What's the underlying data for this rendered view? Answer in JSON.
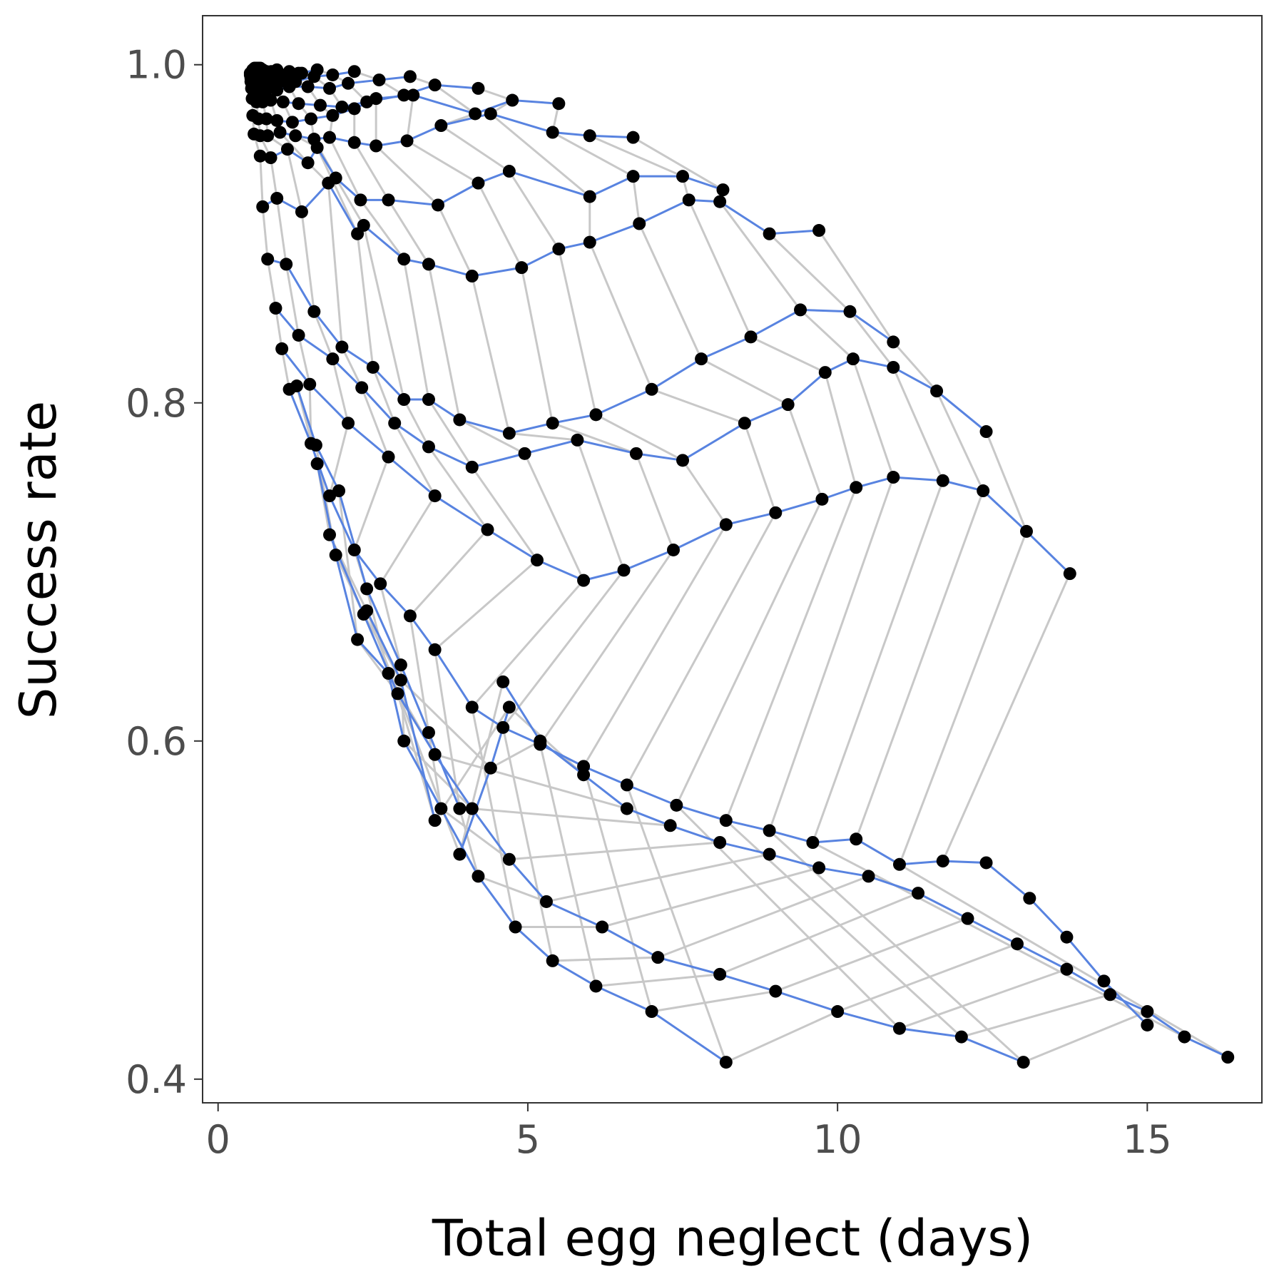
{
  "chart_data": {
    "type": "line",
    "title": "",
    "xlabel": "Total egg neglect (days)",
    "ylabel": "Success rate",
    "xlim": [
      -0.25,
      16.85
    ],
    "ylim": [
      0.386,
      1.029
    ],
    "x_ticks": [
      0,
      5,
      10,
      15
    ],
    "x_tick_labels": [
      "0",
      "5",
      "10",
      "15"
    ],
    "y_ticks": [
      0.4,
      0.6,
      0.8,
      1.0
    ],
    "y_tick_labels": [
      "0.4",
      "0.6",
      "0.8",
      "1.0"
    ],
    "grid": false,
    "legend": "none",
    "colors": {
      "series_line": "#5883e0",
      "connector_line": "#c8c8c8",
      "point": "#000000",
      "frame": "#333333",
      "tick_label": "#4d4d4d"
    },
    "series": [
      {
        "points": [
          [
            0.52,
            0.995
          ],
          [
            0.56,
            0.997
          ],
          [
            0.59,
            0.998
          ],
          [
            0.62,
            0.998
          ],
          [
            0.65,
            0.998
          ],
          [
            0.68,
            0.998
          ],
          [
            0.72,
            0.997
          ]
        ]
      },
      {
        "points": [
          [
            0.52,
            0.994
          ],
          [
            0.56,
            0.996
          ],
          [
            0.6,
            0.997
          ],
          [
            0.64,
            0.996
          ],
          [
            0.7,
            0.996
          ],
          [
            0.78,
            0.996
          ],
          [
            0.86,
            0.996
          ],
          [
            0.95,
            0.997
          ]
        ]
      },
      {
        "points": [
          [
            0.53,
            0.993
          ],
          [
            0.57,
            0.994
          ],
          [
            0.61,
            0.994
          ],
          [
            0.66,
            0.994
          ],
          [
            0.74,
            0.994
          ],
          [
            0.84,
            0.995
          ],
          [
            0.96,
            0.996
          ],
          [
            1.15,
            0.996
          ],
          [
            1.3,
            0.995
          ]
        ]
      },
      {
        "points": [
          [
            0.53,
            0.992
          ],
          [
            0.57,
            0.993
          ],
          [
            0.62,
            0.992
          ],
          [
            0.68,
            0.992
          ],
          [
            0.78,
            0.992
          ],
          [
            0.92,
            0.993
          ],
          [
            1.1,
            0.993
          ],
          [
            1.35,
            0.995
          ],
          [
            1.6,
            0.997
          ]
        ]
      },
      {
        "points": [
          [
            0.53,
            0.99
          ],
          [
            0.58,
            0.99
          ],
          [
            0.64,
            0.99
          ],
          [
            0.72,
            0.99
          ],
          [
            0.84,
            0.99
          ],
          [
            1.0,
            0.99
          ],
          [
            1.25,
            0.99
          ],
          [
            1.55,
            0.993
          ],
          [
            1.85,
            0.994
          ],
          [
            2.2,
            0.996
          ]
        ]
      },
      {
        "points": [
          [
            0.54,
            0.986
          ],
          [
            0.6,
            0.985
          ],
          [
            0.68,
            0.984
          ],
          [
            0.78,
            0.985
          ],
          [
            0.95,
            0.985
          ],
          [
            1.15,
            0.987
          ],
          [
            1.45,
            0.987
          ],
          [
            1.8,
            0.986
          ],
          [
            2.1,
            0.989
          ],
          [
            2.6,
            0.991
          ],
          [
            3.1,
            0.993
          ]
        ]
      },
      {
        "points": [
          [
            0.55,
            0.98
          ],
          [
            0.62,
            0.978
          ],
          [
            0.72,
            0.978
          ],
          [
            0.85,
            0.979
          ],
          [
            1.05,
            0.978
          ],
          [
            1.3,
            0.977
          ],
          [
            1.65,
            0.976
          ],
          [
            2.0,
            0.975
          ],
          [
            2.4,
            0.978
          ],
          [
            3.0,
            0.982
          ],
          [
            3.5,
            0.988
          ],
          [
            4.2,
            0.986
          ]
        ]
      },
      {
        "points": [
          [
            0.56,
            0.97
          ],
          [
            0.65,
            0.968
          ],
          [
            0.78,
            0.968
          ],
          [
            0.95,
            0.967
          ],
          [
            1.2,
            0.966
          ],
          [
            1.5,
            0.968
          ],
          [
            1.85,
            0.97
          ],
          [
            2.2,
            0.974
          ],
          [
            2.55,
            0.98
          ],
          [
            3.15,
            0.982
          ],
          [
            4.15,
            0.971
          ],
          [
            4.75,
            0.979
          ],
          [
            5.5,
            0.977
          ]
        ]
      },
      {
        "points": [
          [
            0.58,
            0.959
          ],
          [
            0.68,
            0.958
          ],
          [
            0.8,
            0.958
          ],
          [
            1.0,
            0.96
          ],
          [
            1.25,
            0.958
          ],
          [
            1.55,
            0.956
          ],
          [
            1.8,
            0.957
          ],
          [
            2.2,
            0.954
          ],
          [
            2.55,
            0.952
          ],
          [
            3.05,
            0.955
          ],
          [
            3.6,
            0.964
          ],
          [
            4.4,
            0.971
          ],
          [
            5.4,
            0.96
          ],
          [
            6.0,
            0.958
          ],
          [
            6.7,
            0.957
          ]
        ]
      },
      {
        "points": [
          [
            0.68,
            0.946
          ],
          [
            0.85,
            0.945
          ],
          [
            1.12,
            0.95
          ],
          [
            1.45,
            0.942
          ],
          [
            1.6,
            0.951
          ],
          [
            1.9,
            0.933
          ],
          [
            2.3,
            0.92
          ],
          [
            2.75,
            0.92
          ],
          [
            3.55,
            0.917
          ],
          [
            4.2,
            0.93
          ],
          [
            4.7,
            0.937
          ],
          [
            6.0,
            0.922
          ],
          [
            6.7,
            0.934
          ],
          [
            7.5,
            0.934
          ],
          [
            8.15,
            0.926
          ]
        ]
      },
      {
        "points": [
          [
            0.72,
            0.916
          ],
          [
            0.95,
            0.921
          ],
          [
            1.35,
            0.913
          ],
          [
            1.78,
            0.93
          ],
          [
            2.25,
            0.9
          ],
          [
            2.35,
            0.905
          ],
          [
            3.0,
            0.885
          ],
          [
            3.4,
            0.882
          ],
          [
            4.1,
            0.875
          ],
          [
            4.9,
            0.88
          ],
          [
            5.5,
            0.891
          ],
          [
            6.0,
            0.895
          ],
          [
            6.8,
            0.906
          ],
          [
            7.6,
            0.92
          ],
          [
            8.1,
            0.919
          ],
          [
            8.9,
            0.9
          ],
          [
            9.7,
            0.902
          ]
        ]
      },
      {
        "points": [
          [
            0.8,
            0.885
          ],
          [
            1.1,
            0.882
          ],
          [
            1.55,
            0.854
          ],
          [
            2.0,
            0.833
          ],
          [
            2.5,
            0.821
          ],
          [
            3.0,
            0.802
          ],
          [
            3.4,
            0.802
          ],
          [
            3.9,
            0.79
          ],
          [
            4.7,
            0.782
          ],
          [
            5.4,
            0.788
          ],
          [
            6.1,
            0.793
          ],
          [
            7.0,
            0.808
          ],
          [
            7.8,
            0.826
          ],
          [
            8.6,
            0.839
          ],
          [
            9.4,
            0.855
          ],
          [
            10.2,
            0.854
          ],
          [
            10.9,
            0.836
          ]
        ]
      },
      {
        "points": [
          [
            0.93,
            0.856
          ],
          [
            1.3,
            0.84
          ],
          [
            1.85,
            0.826
          ],
          [
            2.32,
            0.809
          ],
          [
            2.85,
            0.788
          ],
          [
            3.4,
            0.774
          ],
          [
            4.1,
            0.762
          ],
          [
            4.95,
            0.77
          ],
          [
            5.8,
            0.778
          ],
          [
            6.75,
            0.77
          ],
          [
            7.5,
            0.766
          ],
          [
            8.5,
            0.788
          ],
          [
            9.2,
            0.799
          ],
          [
            9.8,
            0.818
          ],
          [
            10.25,
            0.826
          ],
          [
            10.9,
            0.821
          ],
          [
            11.6,
            0.807
          ],
          [
            12.4,
            0.783
          ]
        ]
      },
      {
        "points": [
          [
            1.03,
            0.832
          ],
          [
            1.48,
            0.811
          ],
          [
            2.1,
            0.788
          ],
          [
            2.75,
            0.768
          ],
          [
            3.5,
            0.745
          ],
          [
            4.35,
            0.725
          ],
          [
            5.15,
            0.707
          ],
          [
            5.9,
            0.695
          ],
          [
            6.55,
            0.701
          ],
          [
            7.35,
            0.713
          ],
          [
            8.2,
            0.728
          ],
          [
            9.0,
            0.735
          ],
          [
            9.75,
            0.743
          ],
          [
            10.3,
            0.75
          ],
          [
            10.9,
            0.756
          ],
          [
            11.7,
            0.754
          ],
          [
            12.35,
            0.748
          ],
          [
            13.05,
            0.724
          ],
          [
            13.75,
            0.699
          ]
        ]
      },
      {
        "points": [
          [
            1.15,
            0.808
          ],
          [
            1.5,
            0.776
          ],
          [
            1.8,
            0.745
          ],
          [
            2.2,
            0.713
          ],
          [
            2.62,
            0.693
          ],
          [
            3.1,
            0.674
          ],
          [
            3.5,
            0.654
          ],
          [
            4.1,
            0.62
          ],
          [
            4.6,
            0.608
          ],
          [
            5.2,
            0.598
          ],
          [
            5.9,
            0.585
          ],
          [
            6.6,
            0.574
          ],
          [
            7.4,
            0.562
          ],
          [
            8.2,
            0.553
          ],
          [
            8.9,
            0.547
          ],
          [
            9.6,
            0.54
          ],
          [
            10.3,
            0.542
          ],
          [
            11.0,
            0.527
          ],
          [
            11.7,
            0.529
          ],
          [
            12.4,
            0.528
          ],
          [
            13.1,
            0.507
          ],
          [
            13.7,
            0.484
          ],
          [
            14.3,
            0.458
          ],
          [
            15.0,
            0.432
          ]
        ]
      },
      {
        "points": [
          [
            1.27,
            0.81
          ],
          [
            1.58,
            0.775
          ],
          [
            1.95,
            0.748
          ],
          [
            2.4,
            0.69
          ],
          [
            2.95,
            0.645
          ],
          [
            3.4,
            0.605
          ],
          [
            3.9,
            0.56
          ]
        ]
      },
      {
        "points": [
          [
            1.6,
            0.764
          ],
          [
            1.9,
            0.71
          ],
          [
            2.25,
            0.66
          ],
          [
            2.75,
            0.64
          ],
          [
            3.0,
            0.6
          ],
          [
            3.6,
            0.56
          ],
          [
            4.2,
            0.52
          ],
          [
            4.8,
            0.49
          ],
          [
            5.4,
            0.47
          ],
          [
            6.1,
            0.455
          ],
          [
            7.0,
            0.44
          ],
          [
            8.2,
            0.41
          ]
        ]
      },
      {
        "points": [
          [
            1.8,
            0.722
          ],
          [
            2.35,
            0.675
          ],
          [
            2.9,
            0.628
          ],
          [
            3.5,
            0.592
          ],
          [
            4.1,
            0.56
          ],
          [
            4.7,
            0.53
          ],
          [
            5.3,
            0.505
          ],
          [
            6.2,
            0.49
          ],
          [
            7.1,
            0.472
          ],
          [
            8.1,
            0.462
          ],
          [
            9.0,
            0.452
          ],
          [
            10.0,
            0.44
          ],
          [
            11.0,
            0.43
          ],
          [
            12.0,
            0.425
          ],
          [
            13.0,
            0.41
          ]
        ]
      },
      {
        "points": [
          [
            2.4,
            0.677
          ],
          [
            2.95,
            0.636
          ],
          [
            3.5,
            0.553
          ]
        ]
      },
      {
        "points": [
          [
            3.9,
            0.533
          ],
          [
            4.4,
            0.584
          ],
          [
            4.7,
            0.62
          ]
        ]
      },
      {
        "points": [
          [
            4.6,
            0.635
          ],
          [
            5.2,
            0.6
          ],
          [
            5.9,
            0.58
          ],
          [
            6.6,
            0.56
          ],
          [
            7.3,
            0.55
          ],
          [
            8.1,
            0.54
          ],
          [
            8.9,
            0.533
          ],
          [
            9.7,
            0.525
          ],
          [
            10.5,
            0.52
          ],
          [
            11.3,
            0.51
          ],
          [
            12.1,
            0.495
          ],
          [
            12.9,
            0.48
          ],
          [
            13.7,
            0.465
          ],
          [
            14.4,
            0.45
          ],
          [
            15.0,
            0.44
          ],
          [
            15.6,
            0.425
          ],
          [
            16.3,
            0.413
          ]
        ]
      }
    ]
  }
}
